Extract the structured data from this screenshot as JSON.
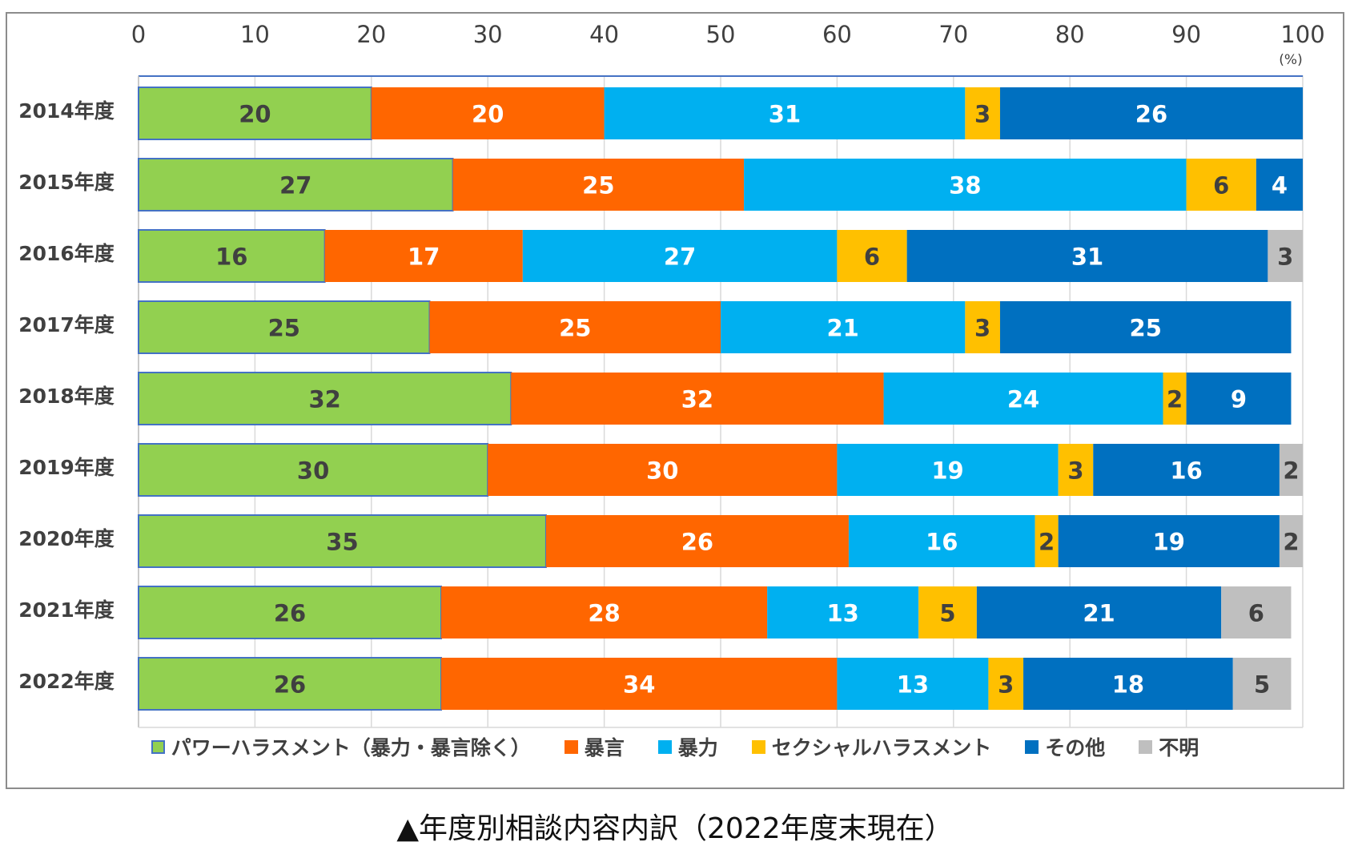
{
  "caption": "▲年度別相談内容内訳（2022年度末現在）",
  "colors": {
    "power": "#92d050",
    "verbal": "#ff6600",
    "violence": "#00b0f0",
    "sexual": "#ffc000",
    "other": "#0070c0",
    "unknown": "#bfbfbf"
  },
  "chart_data": {
    "type": "bar",
    "orientation": "horizontal",
    "stacked": true,
    "xlim": [
      0,
      100
    ],
    "x_ticks": [
      "0",
      "10",
      "20",
      "30",
      "40",
      "50",
      "60",
      "70",
      "80",
      "90",
      "100"
    ],
    "x_unit": "(%)",
    "legend_position": "bottom",
    "grid": true,
    "categories": [
      "2014年度",
      "2015年度",
      "2016年度",
      "2017年度",
      "2018年度",
      "2019年度",
      "2020年度",
      "2021年度",
      "2022年度"
    ],
    "series": [
      {
        "name": "パワーハラスメント（暴力・暴言除く）",
        "color": "#92d050",
        "label_color": "#404040",
        "values": [
          20,
          27,
          16,
          25,
          32,
          30,
          35,
          26,
          26
        ]
      },
      {
        "name": "暴言",
        "color": "#ff6600",
        "label_color": "#ffffff",
        "values": [
          20,
          25,
          17,
          25,
          32,
          30,
          26,
          28,
          34
        ]
      },
      {
        "name": "暴力",
        "color": "#00b0f0",
        "label_color": "#ffffff",
        "values": [
          31,
          38,
          27,
          21,
          24,
          19,
          16,
          13,
          13
        ]
      },
      {
        "name": "セクシャルハラスメント",
        "color": "#ffc000",
        "label_color": "#404040",
        "values": [
          3,
          6,
          6,
          3,
          2,
          3,
          2,
          5,
          3
        ]
      },
      {
        "name": "その他",
        "color": "#0070c0",
        "label_color": "#ffffff",
        "values": [
          26,
          4,
          31,
          25,
          9,
          16,
          19,
          21,
          18
        ]
      },
      {
        "name": "不明",
        "color": "#bfbfbf",
        "label_color": "#404040",
        "values": [
          0,
          0,
          3,
          0,
          0,
          2,
          2,
          6,
          5
        ]
      }
    ]
  }
}
